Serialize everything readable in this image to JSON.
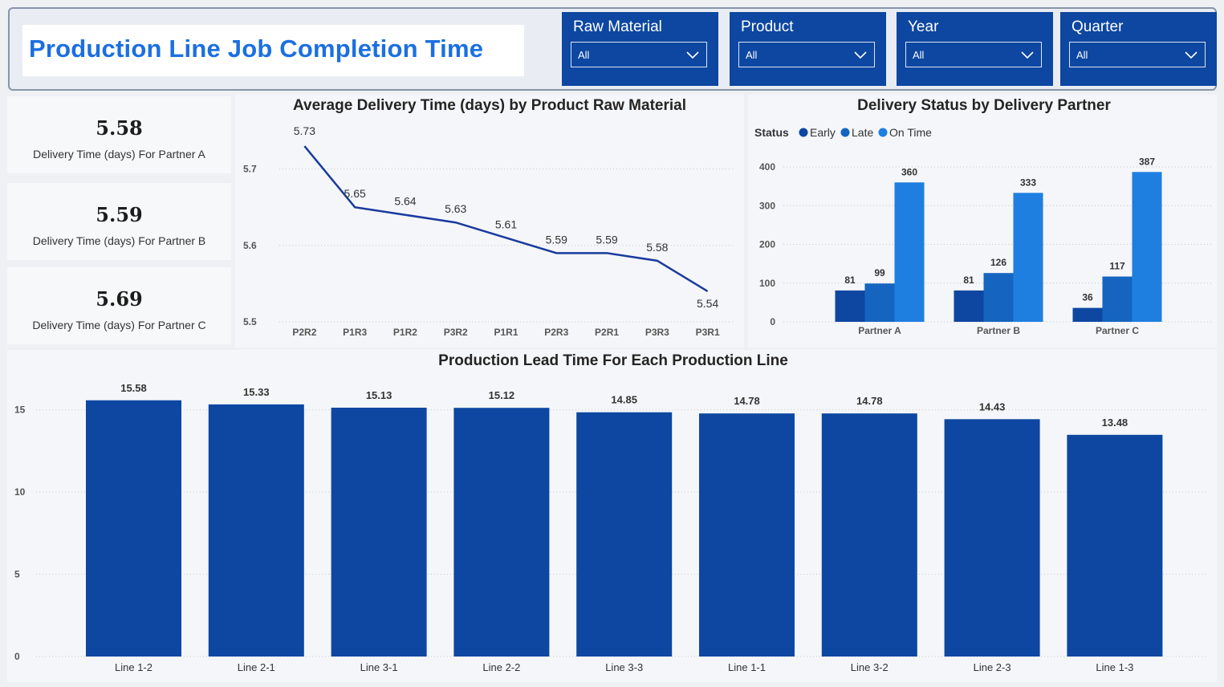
{
  "header": {
    "title": "Production Line Job Completion Time",
    "slicers": [
      {
        "label": "Raw Material",
        "value": "All"
      },
      {
        "label": "Product",
        "value": "All"
      },
      {
        "label": "Year",
        "value": "All"
      },
      {
        "label": "Quarter",
        "value": "All"
      }
    ]
  },
  "kpis": [
    {
      "value": "5.58",
      "label": "Delivery Time (days) For Partner A"
    },
    {
      "value": "5.59",
      "label": "Delivery Time (days) For Partner B"
    },
    {
      "value": "5.69",
      "label": "Delivery Time (days) For Partner C"
    }
  ],
  "colors": {
    "brand": "#1b6fe0",
    "slicer_bg": "#0d47a1",
    "bar": "#0d47a1",
    "line": "#1a3a9e",
    "early": "#0d47a1",
    "late": "#1565c0",
    "on_time": "#1e7fe0"
  },
  "chart_data": [
    {
      "type": "line",
      "title": "Average Delivery Time (days) by Product Raw Material",
      "x": [
        "P2R2",
        "P1R3",
        "P1R2",
        "P3R2",
        "P1R1",
        "P2R3",
        "P2R1",
        "P3R3",
        "P3R1"
      ],
      "values": [
        5.73,
        5.65,
        5.64,
        5.63,
        5.61,
        5.59,
        5.59,
        5.58,
        5.54
      ],
      "ylim": [
        5.5,
        5.75
      ],
      "yticks": [
        5.5,
        5.6,
        5.7
      ],
      "grid": true
    },
    {
      "type": "bar",
      "title": "Delivery Status by Delivery Partner",
      "legend_title": "Status",
      "legend_position": "top-left",
      "categories": [
        "Partner A",
        "Partner B",
        "Partner C"
      ],
      "series": [
        {
          "name": "Early",
          "values": [
            81,
            81,
            36
          ]
        },
        {
          "name": "Late",
          "values": [
            99,
            126,
            117
          ]
        },
        {
          "name": "On Time",
          "values": [
            360,
            333,
            387
          ]
        }
      ],
      "ylim": [
        0,
        400
      ],
      "yticks": [
        0,
        100,
        200,
        300,
        400
      ],
      "grid": true
    },
    {
      "type": "bar",
      "title": "Production Lead Time For Each Production Line",
      "categories": [
        "Line 1-2",
        "Line 2-1",
        "Line 3-1",
        "Line 2-2",
        "Line 3-3",
        "Line 1-1",
        "Line 3-2",
        "Line 2-3",
        "Line 1-3"
      ],
      "values": [
        15.58,
        15.33,
        15.13,
        15.12,
        14.85,
        14.78,
        14.78,
        14.43,
        13.48
      ],
      "ylim": [
        0,
        16.3
      ],
      "yticks": [
        0,
        5,
        10,
        15
      ],
      "grid": true
    }
  ]
}
